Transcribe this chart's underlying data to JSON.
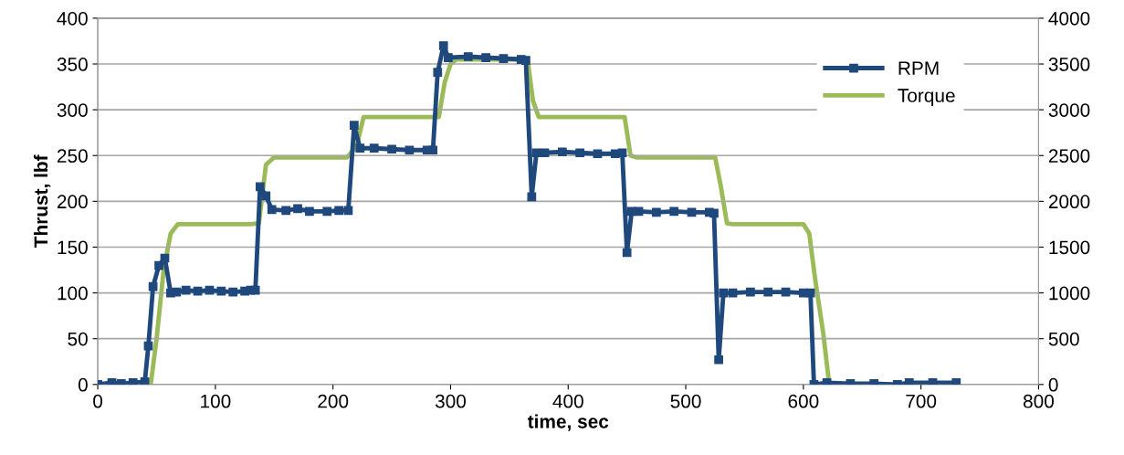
{
  "chart_data": {
    "type": "line",
    "xlabel": "time, sec",
    "ylabel": "Thrust, lbf",
    "xlim": [
      0,
      800
    ],
    "xticks": [
      0,
      100,
      200,
      300,
      400,
      500,
      600,
      700,
      800
    ],
    "ylim": [
      0,
      400
    ],
    "yticks": [
      0,
      50,
      100,
      150,
      200,
      250,
      300,
      350,
      400
    ],
    "y2lim": [
      0,
      4000
    ],
    "y2ticks": [
      0,
      500,
      1000,
      1500,
      2000,
      2500,
      3000,
      3500,
      4000
    ],
    "grid": "y",
    "legend": "top right",
    "series": [
      {
        "name": "RPM",
        "color": "#1f497d",
        "marker": "square",
        "x": [
          0,
          12,
          20,
          30,
          40,
          43,
          47,
          52,
          57,
          62,
          67,
          75,
          85,
          95,
          105,
          115,
          125,
          130,
          134,
          138,
          143,
          148,
          160,
          170,
          180,
          195,
          205,
          213,
          218,
          223,
          235,
          250,
          265,
          280,
          285,
          289,
          294,
          298,
          315,
          330,
          345,
          360,
          364,
          369,
          373,
          380,
          395,
          410,
          425,
          440,
          446,
          450,
          454,
          460,
          475,
          490,
          505,
          520,
          524,
          528,
          532,
          540,
          555,
          570,
          585,
          600,
          606,
          609,
          620,
          640,
          660,
          680,
          690,
          710,
          730
        ],
        "values": [
          0,
          2,
          1,
          2,
          3,
          42,
          107,
          130,
          138,
          100,
          101,
          103,
          102,
          103,
          102,
          101,
          102,
          103,
          103,
          216,
          206,
          191,
          190,
          192,
          189,
          189,
          190,
          190,
          283,
          258,
          258,
          257,
          256,
          256,
          256,
          341,
          370,
          357,
          358,
          357,
          356,
          355,
          354,
          205,
          253,
          253,
          254,
          253,
          252,
          252,
          253,
          144,
          189,
          189,
          188,
          189,
          188,
          188,
          187,
          27,
          100,
          100,
          101,
          101,
          101,
          100,
          100,
          0,
          2,
          1,
          1,
          0,
          2,
          2,
          2
        ]
      },
      {
        "name": "Torque",
        "color": "#9bbb59",
        "marker": "none",
        "axis": "y2",
        "x": [
          0,
          45,
          50,
          56,
          62,
          68,
          130,
          137,
          143,
          150,
          212,
          220,
          226,
          290,
          295,
          300,
          305,
          360,
          366,
          370,
          375,
          448,
          453,
          458,
          525,
          530,
          535,
          540,
          600,
          605,
          610,
          617,
          622,
          730
        ],
        "values": [
          0,
          0,
          500,
          1250,
          1650,
          1750,
          1750,
          1760,
          2400,
          2480,
          2480,
          2600,
          2920,
          2920,
          3300,
          3500,
          3550,
          3550,
          3500,
          3100,
          2920,
          2920,
          2500,
          2480,
          2480,
          2150,
          1760,
          1750,
          1750,
          1650,
          1150,
          550,
          0,
          0
        ]
      }
    ]
  }
}
